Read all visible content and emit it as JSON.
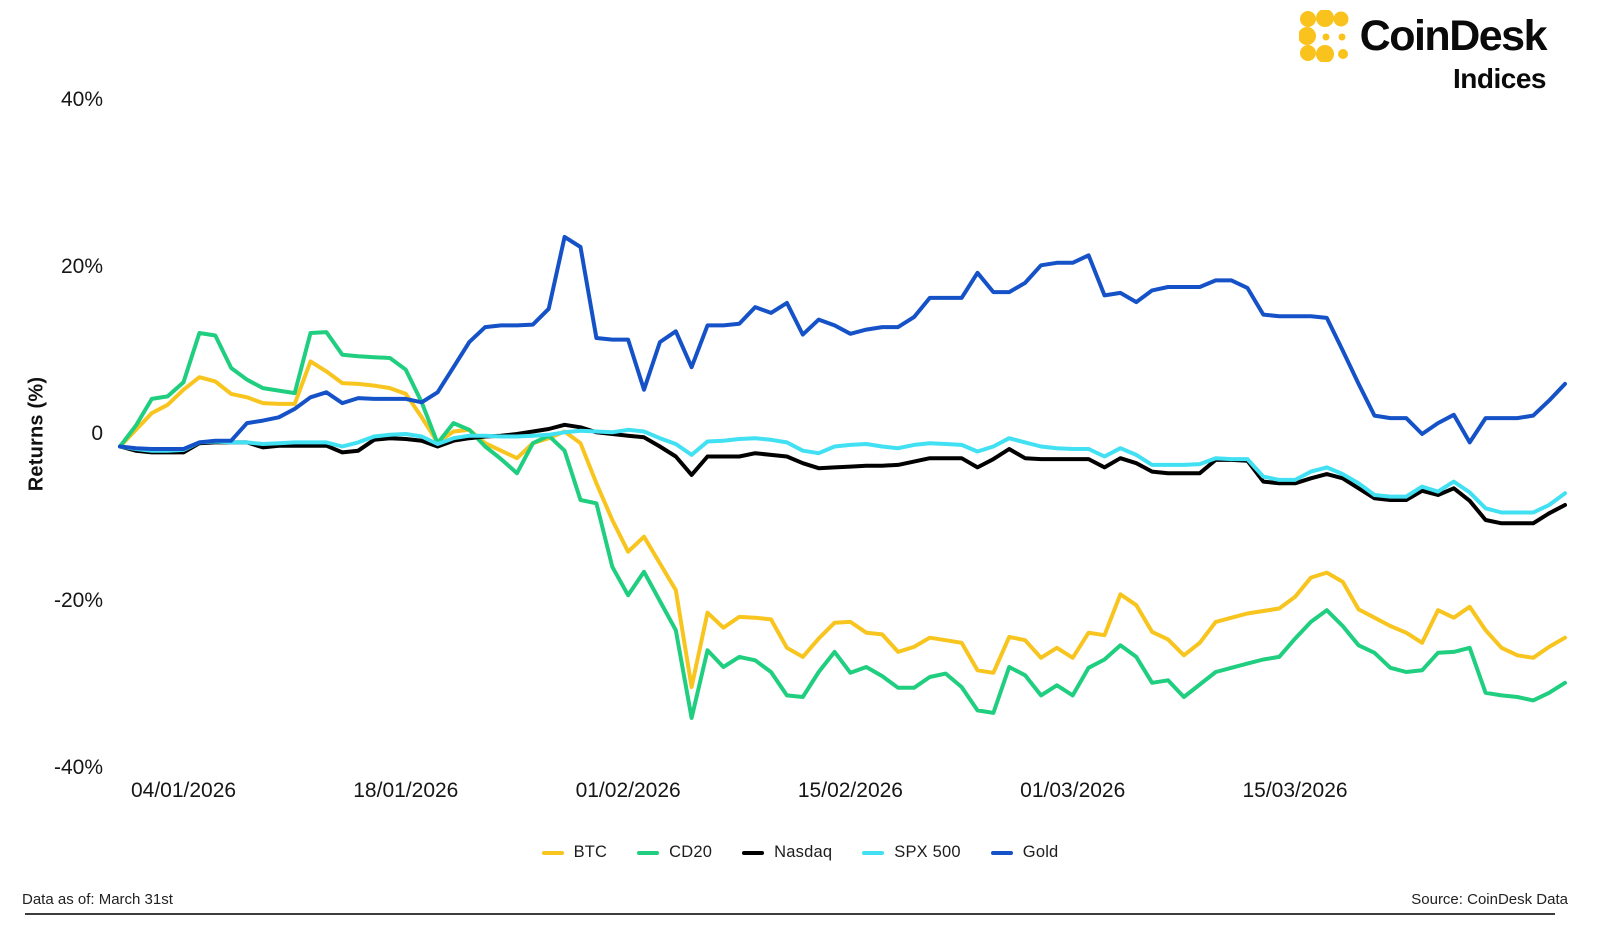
{
  "logo": {
    "brand": "CoinDesk",
    "sub": "Indices",
    "icon_color": "#F9C21D"
  },
  "chart_data": {
    "type": "line",
    "title": "",
    "ylabel": "Returns (%)",
    "ylim": [
      -45,
      45
    ],
    "grid": false,
    "legend_position": "bottom",
    "x_range": {
      "start": "31/12/2025",
      "end": "31/03/2026",
      "points": 92,
      "frequency": "daily"
    },
    "yticks": [
      {
        "label": "40%",
        "value": 40
      },
      {
        "label": "20%",
        "value": 20
      },
      {
        "label": "0",
        "value": 0
      },
      {
        "label": "-20%",
        "value": -20
      },
      {
        "label": "-40%",
        "value": -40
      }
    ],
    "xticks": [
      {
        "label": "04/01/2026",
        "day_index": 4
      },
      {
        "label": "18/01/2026",
        "day_index": 18
      },
      {
        "label": "01/02/2026",
        "day_index": 32
      },
      {
        "label": "15/02/2026",
        "day_index": 46
      },
      {
        "label": "01/03/2026",
        "day_index": 60
      },
      {
        "label": "15/03/2026",
        "day_index": 74
      }
    ],
    "series": [
      {
        "name": "BTC",
        "color": "#F8C41E",
        "values": [
          -1.5,
          0.5,
          2.5,
          3.5,
          5.3,
          6.8,
          6.3,
          4.8,
          4.4,
          3.7,
          3.6,
          3.6,
          8.7,
          7.5,
          6.1,
          6.0,
          5.8,
          5.5,
          4.8,
          2.0,
          -1.0,
          0.3,
          0.5,
          -1.1,
          -2.0,
          -2.9,
          -1.1,
          -0.5,
          0.3,
          -1.1,
          -5.9,
          -10.3,
          -14.1,
          -12.3,
          -15.5,
          -18.7,
          -30.3,
          -21.4,
          -23.2,
          -21.9,
          -22.0,
          -22.2,
          -25.6,
          -26.7,
          -24.5,
          -22.6,
          -22.5,
          -23.8,
          -24.0,
          -26.1,
          -25.5,
          -24.4,
          -24.7,
          -25.0,
          -28.3,
          -28.6,
          -24.3,
          -24.7,
          -26.8,
          -25.6,
          -26.8,
          -23.8,
          -24.1,
          -19.2,
          -20.5,
          -23.7,
          -24.6,
          -26.5,
          -25.0,
          -22.5,
          -22.0,
          -21.5,
          -21.2,
          -20.9,
          -19.5,
          -17.2,
          -16.6,
          -17.7,
          -21.0,
          -22.0,
          -23.0,
          -23.8,
          -25.0,
          -21.1,
          -22.0,
          -20.7,
          -23.5,
          -25.6,
          -26.5,
          -26.8,
          -25.5,
          -24.4
        ]
      },
      {
        "name": "CD20",
        "color": "#20CE80",
        "values": [
          -1.5,
          1.0,
          4.2,
          4.5,
          6.2,
          12.1,
          11.8,
          7.9,
          6.5,
          5.5,
          5.2,
          4.9,
          12.1,
          12.2,
          9.5,
          9.3,
          9.2,
          9.1,
          7.7,
          3.8,
          -1.1,
          1.3,
          0.5,
          -1.5,
          -3.0,
          -4.7,
          -1.1,
          -0.2,
          -2.0,
          -7.9,
          -8.3,
          -15.9,
          -19.3,
          -16.5,
          -20.0,
          -23.5,
          -34.0,
          -25.9,
          -27.9,
          -26.7,
          -27.1,
          -28.5,
          -31.3,
          -31.5,
          -28.5,
          -26.1,
          -28.6,
          -27.9,
          -29.0,
          -30.4,
          -30.4,
          -29.1,
          -28.7,
          -30.3,
          -33.1,
          -33.4,
          -27.9,
          -28.9,
          -31.3,
          -30.1,
          -31.3,
          -28.0,
          -27.0,
          -25.3,
          -26.7,
          -29.8,
          -29.5,
          -31.5,
          -30.0,
          -28.5,
          -28.0,
          -27.5,
          -27.0,
          -26.7,
          -24.5,
          -22.5,
          -21.1,
          -23.0,
          -25.3,
          -26.2,
          -28.0,
          -28.5,
          -28.3,
          -26.2,
          -26.1,
          -25.6,
          -31.0,
          -31.3,
          -31.5,
          -31.9,
          -31.0,
          -29.8
        ]
      },
      {
        "name": "Nasdaq",
        "color": "#000000",
        "values": [
          -1.5,
          -2.0,
          -2.2,
          -2.2,
          -2.2,
          -1.1,
          -1.0,
          -1.0,
          -1.0,
          -1.6,
          -1.4,
          -1.4,
          -1.4,
          -1.4,
          -2.2,
          -2.0,
          -0.7,
          -0.5,
          -0.6,
          -0.8,
          -1.5,
          -0.8,
          -0.5,
          -0.3,
          -0.2,
          0.0,
          0.3,
          0.6,
          1.1,
          0.8,
          0.2,
          0.0,
          -0.2,
          -0.4,
          -1.5,
          -2.7,
          -4.9,
          -2.7,
          -2.7,
          -2.7,
          -2.3,
          -2.5,
          -2.7,
          -3.5,
          -4.1,
          -4.0,
          -3.9,
          -3.8,
          -3.8,
          -3.7,
          -3.3,
          -2.9,
          -2.9,
          -2.9,
          -4.0,
          -3.0,
          -1.8,
          -2.9,
          -3.0,
          -3.0,
          -3.0,
          -3.0,
          -4.0,
          -2.9,
          -3.5,
          -4.5,
          -4.7,
          -4.7,
          -4.7,
          -3.1,
          -3.1,
          -3.2,
          -5.7,
          -5.9,
          -5.9,
          -5.3,
          -4.8,
          -5.3,
          -6.5,
          -7.7,
          -7.9,
          -7.9,
          -6.8,
          -7.3,
          -6.5,
          -8.0,
          -10.3,
          -10.7,
          -10.7,
          -10.7,
          -9.5,
          -8.5
        ]
      },
      {
        "name": "SPX 500",
        "color": "#41E0F2",
        "values": [
          -1.5,
          -1.8,
          -2.0,
          -2.0,
          -1.9,
          -1.0,
          -0.9,
          -1.0,
          -1.0,
          -1.2,
          -1.1,
          -1.0,
          -1.0,
          -1.0,
          -1.5,
          -1.0,
          -0.3,
          -0.1,
          0.0,
          -0.3,
          -1.2,
          -0.5,
          -0.2,
          -0.2,
          -0.3,
          -0.3,
          -0.2,
          -0.1,
          0.2,
          0.4,
          0.3,
          0.2,
          0.5,
          0.3,
          -0.5,
          -1.2,
          -2.5,
          -0.9,
          -0.8,
          -0.6,
          -0.5,
          -0.7,
          -1.0,
          -2.0,
          -2.3,
          -1.5,
          -1.3,
          -1.2,
          -1.5,
          -1.7,
          -1.3,
          -1.1,
          -1.2,
          -1.3,
          -2.1,
          -1.5,
          -0.5,
          -1.0,
          -1.5,
          -1.7,
          -1.8,
          -1.8,
          -2.7,
          -1.7,
          -2.5,
          -3.7,
          -3.7,
          -3.7,
          -3.6,
          -2.9,
          -3.0,
          -3.0,
          -5.1,
          -5.5,
          -5.5,
          -4.5,
          -4.0,
          -4.8,
          -5.9,
          -7.3,
          -7.5,
          -7.5,
          -6.3,
          -6.9,
          -5.7,
          -7.0,
          -8.9,
          -9.4,
          -9.4,
          -9.4,
          -8.5,
          -7.1
        ]
      },
      {
        "name": "Gold",
        "color": "#1552C8",
        "values": [
          -1.5,
          -1.7,
          -1.8,
          -1.8,
          -1.8,
          -1.0,
          -0.8,
          -0.8,
          1.3,
          1.6,
          2.0,
          3.0,
          4.4,
          5.0,
          3.7,
          4.3,
          4.2,
          4.2,
          4.2,
          3.8,
          5.0,
          8.0,
          11.0,
          12.8,
          13.0,
          13.0,
          13.1,
          15.0,
          23.6,
          22.4,
          11.5,
          11.3,
          11.3,
          5.3,
          11.0,
          12.3,
          8.0,
          13.0,
          13.0,
          13.2,
          15.2,
          14.5,
          15.7,
          11.9,
          13.7,
          13.0,
          12.0,
          12.5,
          12.8,
          12.8,
          14.0,
          16.3,
          16.3,
          16.3,
          19.3,
          17.0,
          17.0,
          18.1,
          20.2,
          20.5,
          20.5,
          21.4,
          16.6,
          16.9,
          15.8,
          17.2,
          17.6,
          17.6,
          17.6,
          18.4,
          18.4,
          17.5,
          14.3,
          14.1,
          14.1,
          14.1,
          13.9,
          10.0,
          6.0,
          2.2,
          1.9,
          1.9,
          0.0,
          1.3,
          2.3,
          -1.0,
          1.9,
          1.9,
          1.9,
          2.2,
          4.0,
          6.0
        ]
      }
    ]
  },
  "footer": {
    "left": "Data as of:  March 31st",
    "right": "Source: CoinDesk Data"
  }
}
